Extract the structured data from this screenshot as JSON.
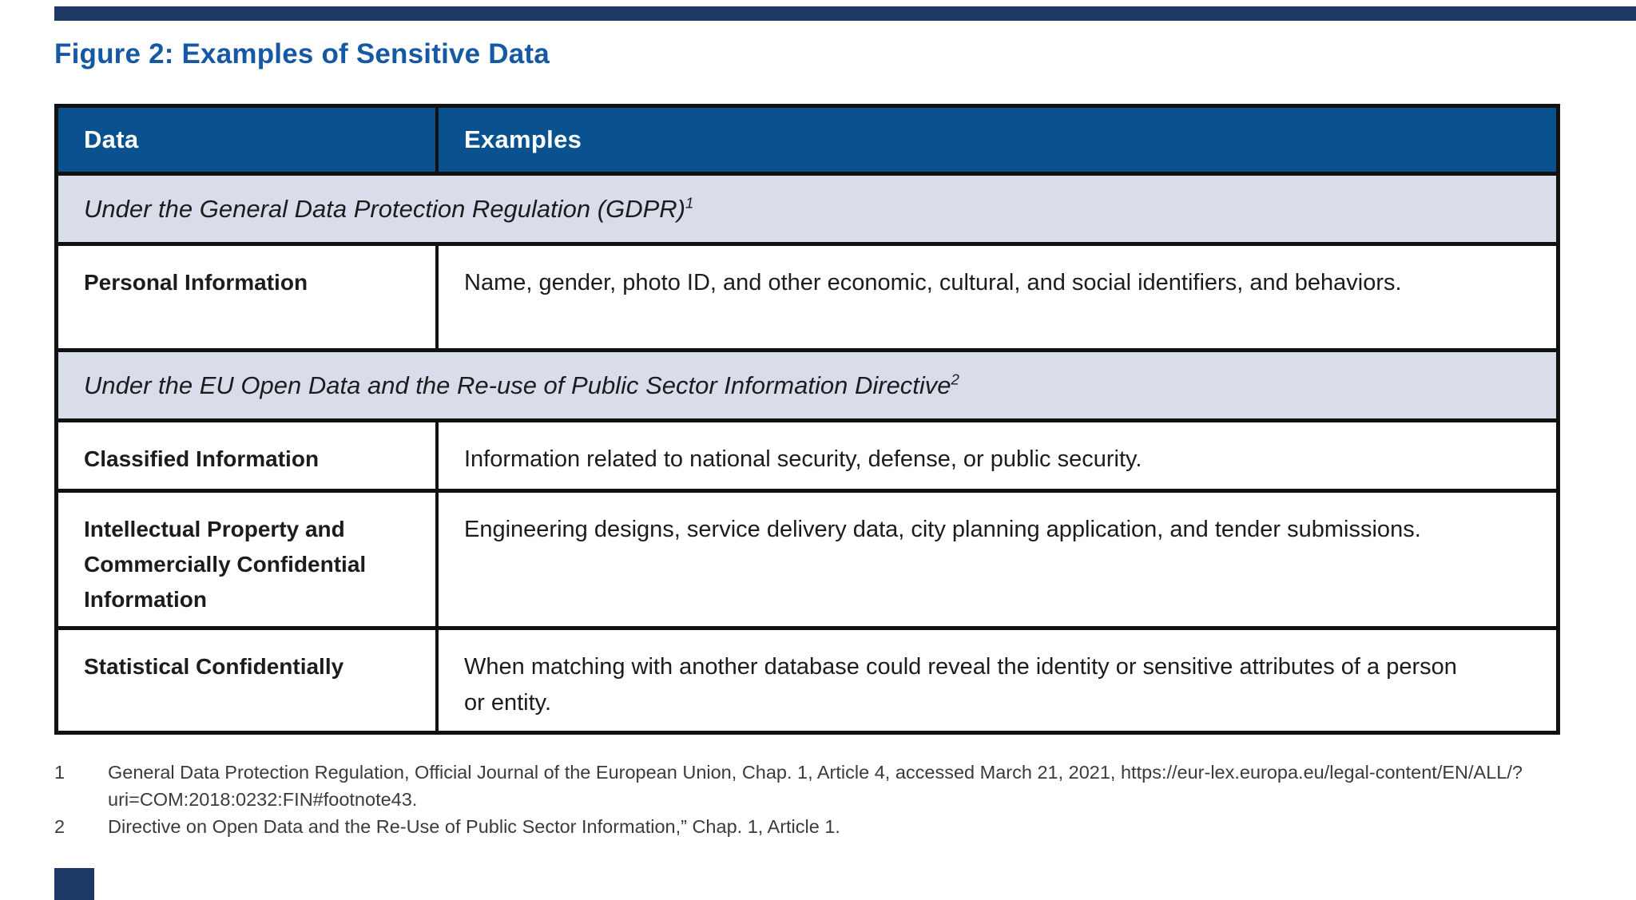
{
  "page": {
    "title": "Figure 2: Examples of Sensitive Data",
    "colors": {
      "title_blue": "#1559a4",
      "header_blue": "#0a528f",
      "section_lavender": "#d9ddea",
      "navy_decoration": "#1e3865",
      "border_black": "#111111"
    }
  },
  "table": {
    "columns": {
      "data": "Data",
      "examples": "Examples"
    },
    "rows": [
      {
        "type": "section",
        "text": "Under the General Data Protection Regulation (GDPR)",
        "sup": "1"
      },
      {
        "type": "data",
        "data": "Personal Information",
        "examples": "Name, gender, photo ID, and other economic, cultural, and social identifiers, and behaviors."
      },
      {
        "type": "section",
        "text": "Under the EU Open Data and the Re-use of Public Sector Information Directive",
        "sup": "2"
      },
      {
        "type": "data",
        "data": "Classified Information",
        "examples": "Information related to national security, defense, or public security."
      },
      {
        "type": "data",
        "data": "Intellectual Property and Commercially Confidential Information",
        "examples": "Engineering designs, service delivery data, city planning application, and tender submissions."
      },
      {
        "type": "data",
        "data": "Statistical Confidentially",
        "examples": "When matching with another database could reveal the identity or sensitive attributes of a person or entity."
      }
    ]
  },
  "footnotes": [
    {
      "num": "1",
      "text": "General Data Protection Regulation, Official Journal of the European Union, Chap. 1, Article 4, accessed March 21, 2021, https://eur-lex.europa.eu/legal-content/EN/ALL/?uri=COM:2018:0232:FIN#footnote43."
    },
    {
      "num": "2",
      "text": "Directive on Open Data and the Re-Use of Public Sector Information,” Chap. 1, Article 1."
    }
  ]
}
